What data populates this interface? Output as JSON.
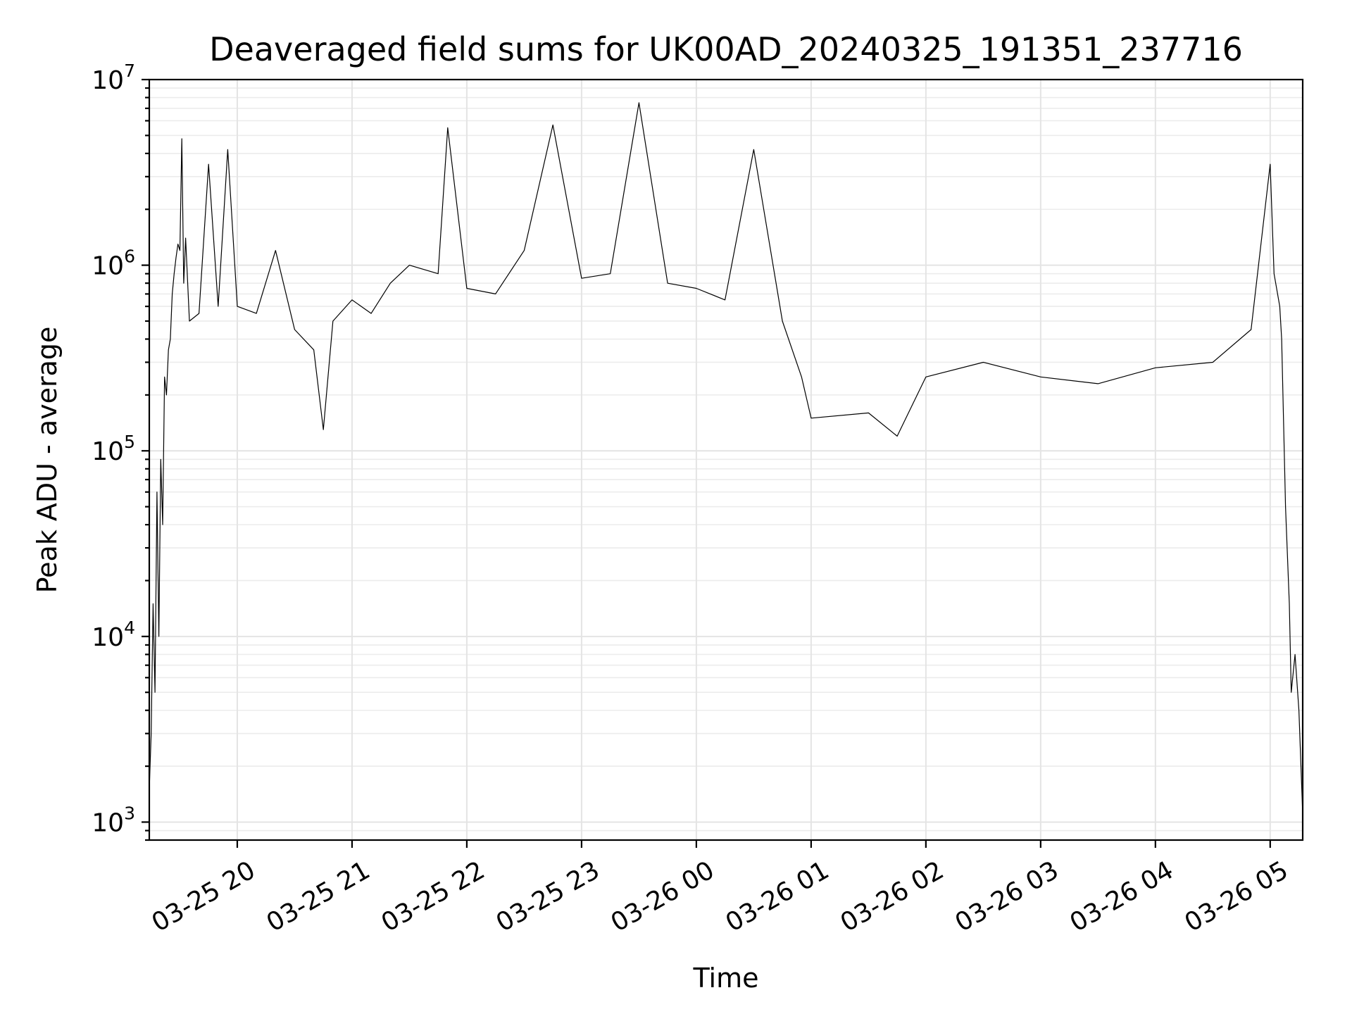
{
  "chart_data": {
    "type": "line",
    "title": "Deaveraged field sums for UK00AD_20240325_191351_237716",
    "xlabel": "Time",
    "ylabel": "Peak ADU - average",
    "yscale": "log",
    "ylim": [
      800,
      10000000
    ],
    "xlim": [
      "2024-03-25 19:14",
      "2024-03-26 05:17"
    ],
    "grid": true,
    "legend": "none",
    "line_color": "#000000",
    "x_ticks": [
      {
        "value": "2024-03-25 20:00",
        "label": "03-25 20"
      },
      {
        "value": "2024-03-25 21:00",
        "label": "03-25 21"
      },
      {
        "value": "2024-03-25 22:00",
        "label": "03-25 22"
      },
      {
        "value": "2024-03-25 23:00",
        "label": "03-25 23"
      },
      {
        "value": "2024-03-26 00:00",
        "label": "03-26 00"
      },
      {
        "value": "2024-03-26 01:00",
        "label": "03-26 01"
      },
      {
        "value": "2024-03-26 02:00",
        "label": "03-26 02"
      },
      {
        "value": "2024-03-26 03:00",
        "label": "03-26 03"
      },
      {
        "value": "2024-03-26 04:00",
        "label": "03-26 04"
      },
      {
        "value": "2024-03-26 05:00",
        "label": "03-26 05"
      }
    ],
    "y_ticks": [
      {
        "value": 1000,
        "base": "10",
        "exp": "3"
      },
      {
        "value": 10000,
        "base": "10",
        "exp": "4"
      },
      {
        "value": 100000,
        "base": "10",
        "exp": "5"
      },
      {
        "value": 1000000,
        "base": "10",
        "exp": "6"
      },
      {
        "value": 10000000,
        "base": "10",
        "exp": "7"
      }
    ],
    "series": [
      {
        "points": [
          [
            "2024-03-25 19:14",
            1500
          ],
          [
            "2024-03-25 19:15",
            3000
          ],
          [
            "2024-03-25 19:16",
            15000
          ],
          [
            "2024-03-25 19:17",
            5000
          ],
          [
            "2024-03-25 19:18",
            60000
          ],
          [
            "2024-03-25 19:19",
            10000
          ],
          [
            "2024-03-25 19:20",
            90000
          ],
          [
            "2024-03-25 19:21",
            40000
          ],
          [
            "2024-03-25 19:22",
            250000
          ],
          [
            "2024-03-25 19:23",
            200000
          ],
          [
            "2024-03-25 19:24",
            350000
          ],
          [
            "2024-03-25 19:25",
            400000
          ],
          [
            "2024-03-25 19:26",
            700000
          ],
          [
            "2024-03-25 19:27",
            900000
          ],
          [
            "2024-03-25 19:28",
            1100000
          ],
          [
            "2024-03-25 19:29",
            1300000
          ],
          [
            "2024-03-25 19:30",
            1200000
          ],
          [
            "2024-03-25 19:31",
            4800000
          ],
          [
            "2024-03-25 19:32",
            800000
          ],
          [
            "2024-03-25 19:33",
            1400000
          ],
          [
            "2024-03-25 19:35",
            500000
          ],
          [
            "2024-03-25 19:40",
            550000
          ],
          [
            "2024-03-25 19:45",
            3500000
          ],
          [
            "2024-03-25 19:50",
            600000
          ],
          [
            "2024-03-25 19:55",
            4200000
          ],
          [
            "2024-03-25 20:00",
            600000
          ],
          [
            "2024-03-25 20:10",
            550000
          ],
          [
            "2024-03-25 20:20",
            1200000
          ],
          [
            "2024-03-25 20:30",
            450000
          ],
          [
            "2024-03-25 20:40",
            350000
          ],
          [
            "2024-03-25 20:45",
            130000
          ],
          [
            "2024-03-25 20:50",
            500000
          ],
          [
            "2024-03-25 21:00",
            650000
          ],
          [
            "2024-03-25 21:10",
            550000
          ],
          [
            "2024-03-25 21:20",
            800000
          ],
          [
            "2024-03-25 21:30",
            1000000
          ],
          [
            "2024-03-25 21:45",
            900000
          ],
          [
            "2024-03-25 21:50",
            5500000
          ],
          [
            "2024-03-25 22:00",
            750000
          ],
          [
            "2024-03-25 22:15",
            700000
          ],
          [
            "2024-03-25 22:30",
            1200000
          ],
          [
            "2024-03-25 22:45",
            5700000
          ],
          [
            "2024-03-25 23:00",
            850000
          ],
          [
            "2024-03-25 23:15",
            900000
          ],
          [
            "2024-03-25 23:30",
            7500000
          ],
          [
            "2024-03-25 23:45",
            800000
          ],
          [
            "2024-03-26 00:00",
            750000
          ],
          [
            "2024-03-26 00:15",
            650000
          ],
          [
            "2024-03-26 00:30",
            4200000
          ],
          [
            "2024-03-26 00:45",
            500000
          ],
          [
            "2024-03-26 00:55",
            250000
          ],
          [
            "2024-03-26 01:00",
            150000
          ],
          [
            "2024-03-26 01:30",
            160000
          ],
          [
            "2024-03-26 01:45",
            120000
          ],
          [
            "2024-03-26 02:00",
            250000
          ],
          [
            "2024-03-26 02:30",
            300000
          ],
          [
            "2024-03-26 03:00",
            250000
          ],
          [
            "2024-03-26 03:30",
            230000
          ],
          [
            "2024-03-26 04:00",
            280000
          ],
          [
            "2024-03-26 04:30",
            300000
          ],
          [
            "2024-03-26 04:50",
            450000
          ],
          [
            "2024-03-26 05:00",
            3500000
          ],
          [
            "2024-03-26 05:02",
            900000
          ],
          [
            "2024-03-26 05:05",
            600000
          ],
          [
            "2024-03-26 05:06",
            400000
          ],
          [
            "2024-03-26 05:08",
            50000
          ],
          [
            "2024-03-26 05:10",
            15000
          ],
          [
            "2024-03-26 05:11",
            5000
          ],
          [
            "2024-03-26 05:13",
            8000
          ],
          [
            "2024-03-26 05:15",
            4000
          ],
          [
            "2024-03-26 05:17",
            1100
          ]
        ]
      }
    ]
  }
}
